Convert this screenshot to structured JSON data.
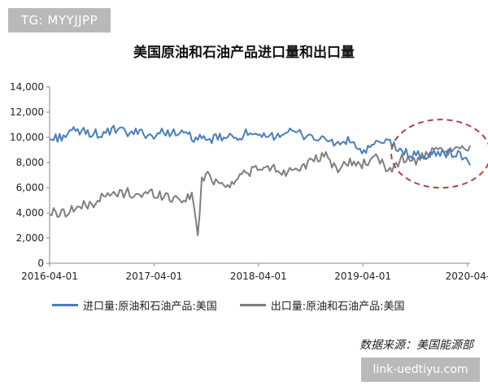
{
  "watermark": "TG: MYYJJPP",
  "source_note": "数据来源：美国能源部",
  "link_badge": "link-uedtiyu.com",
  "colors": {
    "imports": "#4a7ebb",
    "exports": "#7f7f7f",
    "highlight": "#b04444"
  },
  "chart_data": {
    "type": "line",
    "title": "美国原油和石油产品进口量和出口量",
    "xlabel": "",
    "ylabel": "",
    "ylim": [
      0,
      14000
    ],
    "yticks": [
      "0",
      "2,000",
      "4,000",
      "6,000",
      "8,000",
      "10,000",
      "12,000",
      "14,000"
    ],
    "xlim": [
      "2016-04-01",
      "2020-04-10"
    ],
    "xticks": [
      "2016-04-01",
      "2017-04-01",
      "2018-04-01",
      "2019-04-01",
      "2020-04-"
    ],
    "grid": false,
    "legend_position": "bottom",
    "annotations": [
      "dashed ellipse highlighting 2019-07 to 2020-04 where exports approach imports"
    ],
    "series": [
      {
        "name": "进口量:原油和石油产品:美国",
        "x": [
          "2016-04-01",
          "2016-05-15",
          "2016-07-01",
          "2016-08-15",
          "2016-10-01",
          "2016-11-15",
          "2017-01-01",
          "2017-02-15",
          "2017-04-01",
          "2017-05-15",
          "2017-07-01",
          "2017-08-15",
          "2017-10-01",
          "2017-11-15",
          "2018-01-01",
          "2018-02-15",
          "2018-04-01",
          "2018-05-15",
          "2018-07-01",
          "2018-08-15",
          "2018-10-01",
          "2018-11-15",
          "2019-01-01",
          "2019-02-15",
          "2019-04-01",
          "2019-05-15",
          "2019-07-01",
          "2019-08-15",
          "2019-10-01",
          "2019-11-15",
          "2020-01-01",
          "2020-02-15",
          "2020-04-01",
          "2020-04-10"
        ],
        "values": [
          9800,
          10100,
          10500,
          10400,
          10200,
          10600,
          10300,
          10400,
          10100,
          10500,
          10300,
          10000,
          9700,
          10000,
          9900,
          10300,
          9900,
          10100,
          10400,
          10300,
          10100,
          9800,
          9500,
          9700,
          8800,
          9400,
          9700,
          8800,
          8600,
          8500,
          8800,
          8700,
          8400,
          7600
        ]
      },
      {
        "name": "出口量:原油和石油产品:美国",
        "x": [
          "2016-04-01",
          "2016-05-15",
          "2016-07-01",
          "2016-08-15",
          "2016-10-01",
          "2016-11-15",
          "2017-01-01",
          "2017-02-15",
          "2017-04-01",
          "2017-05-15",
          "2017-07-01",
          "2017-08-15",
          "2017-09-01",
          "2017-09-15",
          "2017-10-01",
          "2017-11-15",
          "2018-01-01",
          "2018-02-15",
          "2018-04-01",
          "2018-05-15",
          "2018-07-01",
          "2018-08-15",
          "2018-10-01",
          "2018-11-15",
          "2019-01-01",
          "2019-02-15",
          "2019-04-01",
          "2019-05-15",
          "2019-07-01",
          "2019-08-15",
          "2019-10-01",
          "2019-11-15",
          "2020-01-01",
          "2020-02-15",
          "2020-04-01",
          "2020-04-10"
        ],
        "values": [
          4000,
          4000,
          4400,
          4600,
          5200,
          5500,
          5600,
          5400,
          5600,
          5300,
          5100,
          5300,
          2200,
          6500,
          7000,
          6400,
          6300,
          7300,
          7400,
          7600,
          7200,
          7700,
          7900,
          8600,
          7500,
          8000,
          7900,
          8300,
          7400,
          8300,
          8100,
          8700,
          8800,
          8900,
          9200,
          9500
        ]
      }
    ]
  }
}
